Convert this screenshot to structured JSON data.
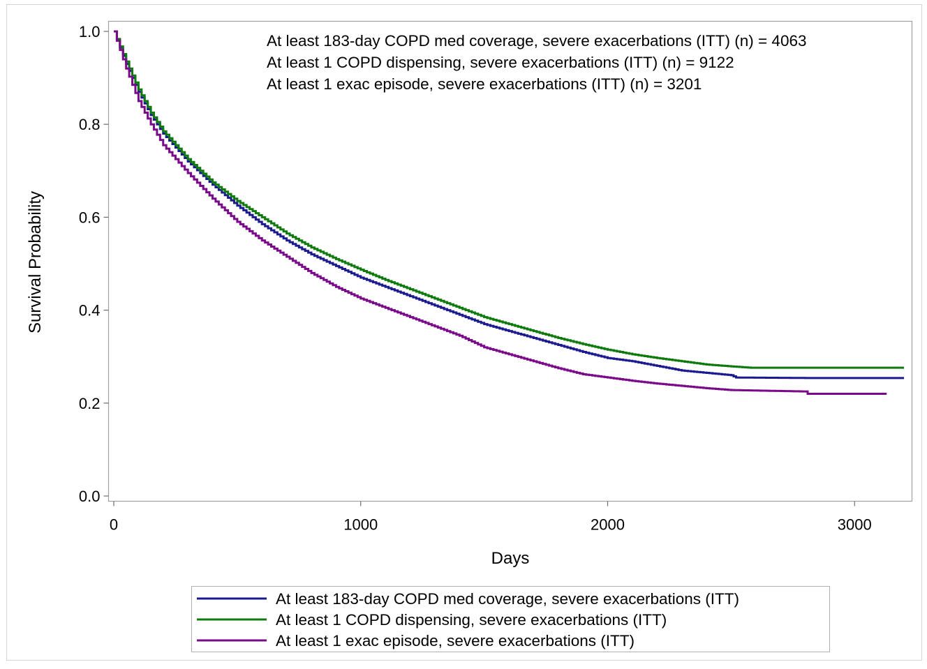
{
  "chart_data": {
    "type": "line",
    "step": true,
    "xlabel": "Days",
    "ylabel": "Survival Probability",
    "xlim": [
      0,
      3200
    ],
    "ylim": [
      0,
      1.0
    ],
    "x_ticks": [
      0,
      1000,
      2000,
      3000
    ],
    "y_ticks": [
      0.0,
      0.2,
      0.4,
      0.6,
      0.8,
      1.0
    ],
    "x_tick_labels": [
      "0",
      "1000",
      "2000",
      "3000"
    ],
    "y_tick_labels": [
      "0.0",
      "0.2",
      "0.4",
      "0.6",
      "0.8",
      "1.0"
    ],
    "grid": false,
    "legend_position": "bottom",
    "annotations": [
      "At least 183-day COPD med coverage, severe exacerbations (ITT) (n) = 4063",
      "At least 1 COPD dispensing, severe exacerbations (ITT) (n) = 9122",
      "At least 1 exac episode, severe exacerbations (ITT) (n) = 3201"
    ],
    "series": [
      {
        "name": "At least 183-day COPD med coverage, severe exacerbations (ITT)",
        "color": "#1b1a8e",
        "x": [
          0,
          50,
          100,
          150,
          200,
          300,
          400,
          500,
          600,
          700,
          800,
          900,
          1000,
          1100,
          1200,
          1300,
          1400,
          1500,
          1600,
          1700,
          1800,
          1900,
          2000,
          2100,
          2200,
          2300,
          2400,
          2500,
          2520,
          2800,
          3200
        ],
        "y": [
          1.0,
          0.93,
          0.87,
          0.82,
          0.78,
          0.72,
          0.67,
          0.625,
          0.585,
          0.55,
          0.52,
          0.495,
          0.47,
          0.45,
          0.43,
          0.41,
          0.39,
          0.37,
          0.355,
          0.34,
          0.325,
          0.31,
          0.297,
          0.29,
          0.28,
          0.27,
          0.265,
          0.26,
          0.255,
          0.254,
          0.254
        ]
      },
      {
        "name": "At least 1 COPD dispensing, severe exacerbations (ITT)",
        "color": "#0e7a0d",
        "x": [
          0,
          50,
          100,
          150,
          200,
          300,
          400,
          500,
          600,
          700,
          800,
          900,
          1000,
          1100,
          1200,
          1300,
          1400,
          1500,
          1600,
          1700,
          1800,
          1900,
          2000,
          2100,
          2200,
          2300,
          2400,
          2500,
          2580,
          3200
        ],
        "y": [
          1.0,
          0.935,
          0.875,
          0.825,
          0.785,
          0.725,
          0.675,
          0.635,
          0.6,
          0.565,
          0.535,
          0.51,
          0.487,
          0.465,
          0.445,
          0.425,
          0.405,
          0.385,
          0.37,
          0.355,
          0.34,
          0.327,
          0.315,
          0.305,
          0.297,
          0.29,
          0.283,
          0.279,
          0.276,
          0.276
        ]
      },
      {
        "name": "At least 1 exac episode, severe exacerbations (ITT)",
        "color": "#7a0a8a",
        "x": [
          0,
          50,
          100,
          150,
          200,
          300,
          400,
          500,
          600,
          700,
          800,
          900,
          1000,
          1100,
          1200,
          1300,
          1400,
          1500,
          1600,
          1700,
          1800,
          1900,
          2000,
          2100,
          2200,
          2300,
          2400,
          2500,
          2800,
          2810,
          3130
        ],
        "y": [
          1.0,
          0.92,
          0.85,
          0.8,
          0.755,
          0.695,
          0.64,
          0.59,
          0.55,
          0.515,
          0.48,
          0.45,
          0.425,
          0.405,
          0.385,
          0.365,
          0.345,
          0.32,
          0.305,
          0.29,
          0.275,
          0.262,
          0.255,
          0.248,
          0.242,
          0.237,
          0.232,
          0.228,
          0.225,
          0.22,
          0.22
        ]
      }
    ]
  }
}
